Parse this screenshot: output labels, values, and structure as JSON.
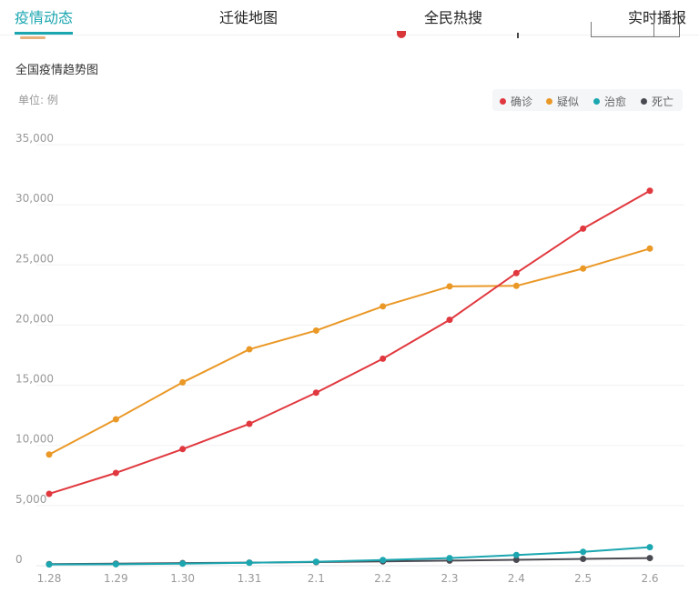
{
  "tabs": [
    {
      "label": "疫情动态",
      "active": true
    },
    {
      "label": "迁徙地图",
      "active": false
    },
    {
      "label": "全民热搜",
      "active": false
    },
    {
      "label": "实时播报",
      "active": false
    }
  ],
  "accent_color": "#1ba6b0",
  "chart_data": {
    "type": "line",
    "title": "全国疫情趋势图",
    "unit_label": "单位: 例",
    "categories": [
      "1.28",
      "1.29",
      "1.30",
      "1.31",
      "2.1",
      "2.2",
      "2.3",
      "2.4",
      "2.5",
      "2.6"
    ],
    "ylim": [
      0,
      35000
    ],
    "yticks": [
      0,
      5000,
      10000,
      15000,
      20000,
      25000,
      30000,
      35000
    ],
    "ytick_labels": [
      "0",
      "5,000",
      "10,000",
      "15,000",
      "20,000",
      "25,000",
      "30,000",
      "35,000"
    ],
    "grid": true,
    "legend_position": "top-right",
    "series": [
      {
        "name": "确诊",
        "color": "#e0383e",
        "values": [
          5974,
          7711,
          9692,
          11791,
          14380,
          17205,
          20438,
          24324,
          28018,
          31161
        ]
      },
      {
        "name": "疑似",
        "color": "#ea9826",
        "values": [
          9239,
          12167,
          15238,
          17988,
          19544,
          21558,
          23214,
          23260,
          24702,
          26359
        ]
      },
      {
        "name": "治愈",
        "color": "#1ba6b0",
        "values": [
          103,
          124,
          171,
          243,
          328,
          475,
          632,
          892,
          1153,
          1540
        ]
      },
      {
        "name": "死亡",
        "color": "#4a4a52",
        "values": [
          132,
          170,
          213,
          259,
          304,
          361,
          425,
          490,
          563,
          636
        ]
      }
    ]
  }
}
